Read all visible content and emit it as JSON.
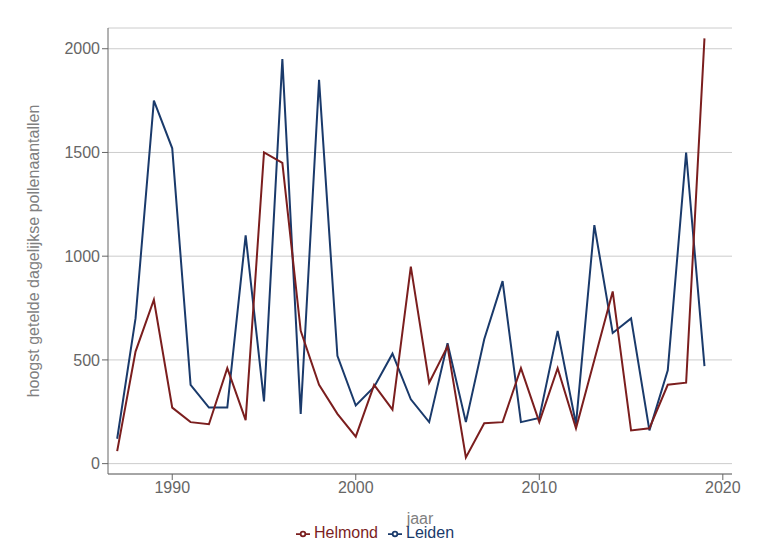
{
  "chart_data": {
    "type": "line",
    "xlabel": "jaar",
    "ylabel": "hoogst getelde dagelijkse pollenaantallen",
    "x": [
      1987,
      1988,
      1989,
      1990,
      1991,
      1992,
      1993,
      1994,
      1995,
      1996,
      1997,
      1998,
      1999,
      2000,
      2001,
      2002,
      2003,
      2004,
      2005,
      2006,
      2007,
      2008,
      2009,
      2010,
      2011,
      2012,
      2013,
      2014,
      2015,
      2016,
      2017,
      2018,
      2019
    ],
    "series": [
      {
        "name": "Leiden",
        "color": "#1a3a6b",
        "values": [
          120,
          700,
          1750,
          1520,
          380,
          270,
          270,
          1100,
          300,
          1950,
          240,
          1850,
          520,
          280,
          370,
          530,
          310,
          200,
          580,
          200,
          600,
          880,
          200,
          220,
          640,
          190,
          1150,
          630,
          700,
          160,
          450,
          1500,
          470
        ]
      },
      {
        "name": "Helmond",
        "color": "#7b1e1e",
        "values": [
          60,
          540,
          790,
          270,
          200,
          190,
          460,
          210,
          1500,
          1450,
          640,
          380,
          240,
          130,
          380,
          260,
          950,
          390,
          565,
          30,
          195,
          200,
          460,
          200,
          460,
          170,
          500,
          830,
          160,
          170,
          380,
          390,
          2050
        ]
      }
    ],
    "xlim": [
      1986.5,
      2020.5
    ],
    "xticks": [
      1990,
      2000,
      2010,
      2020
    ],
    "ylim": [
      -50,
      2100
    ],
    "yticks": [
      0,
      500,
      1000,
      1500,
      2000
    ],
    "grid": true,
    "legend": "bottom"
  }
}
